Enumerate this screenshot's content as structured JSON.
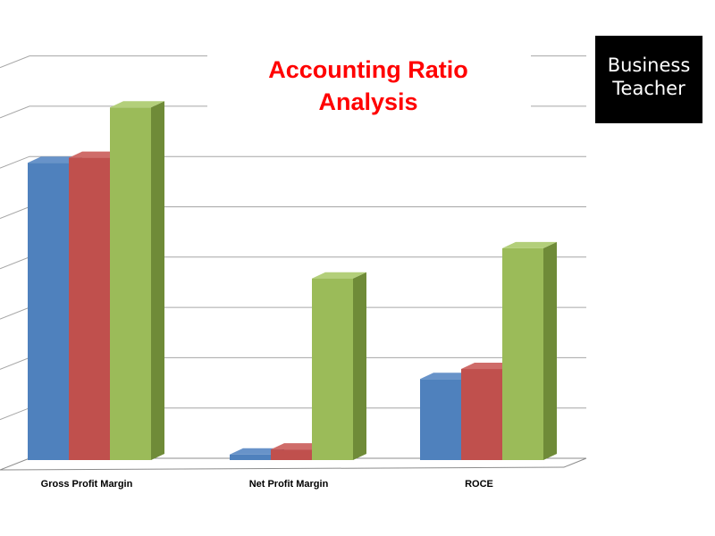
{
  "logo": {
    "line1": "Business",
    "line2": "Teacher"
  },
  "chart_data": {
    "type": "bar",
    "title_lines": [
      "Accounting Ratio",
      "Analysis"
    ],
    "categories": [
      "Gross Profit Margin",
      "Net Profit Margin",
      "ROCE"
    ],
    "series": [
      {
        "values": [
          60,
          2,
          17
        ]
      },
      {
        "values": [
          61,
          3,
          19
        ]
      },
      {
        "values": [
          71,
          37,
          43
        ]
      }
    ],
    "ylim": [
      0,
      80
    ],
    "grid": true,
    "colors": {
      "series": [
        "#4f81bd",
        "#c0504d",
        "#9bbb59"
      ],
      "series_side": [
        "#2e5f96",
        "#8e2e2c",
        "#6f8b38"
      ],
      "series_top": [
        "#6893c9",
        "#cf6c69",
        "#b3cf7a"
      ],
      "title": "#ff0000"
    }
  }
}
